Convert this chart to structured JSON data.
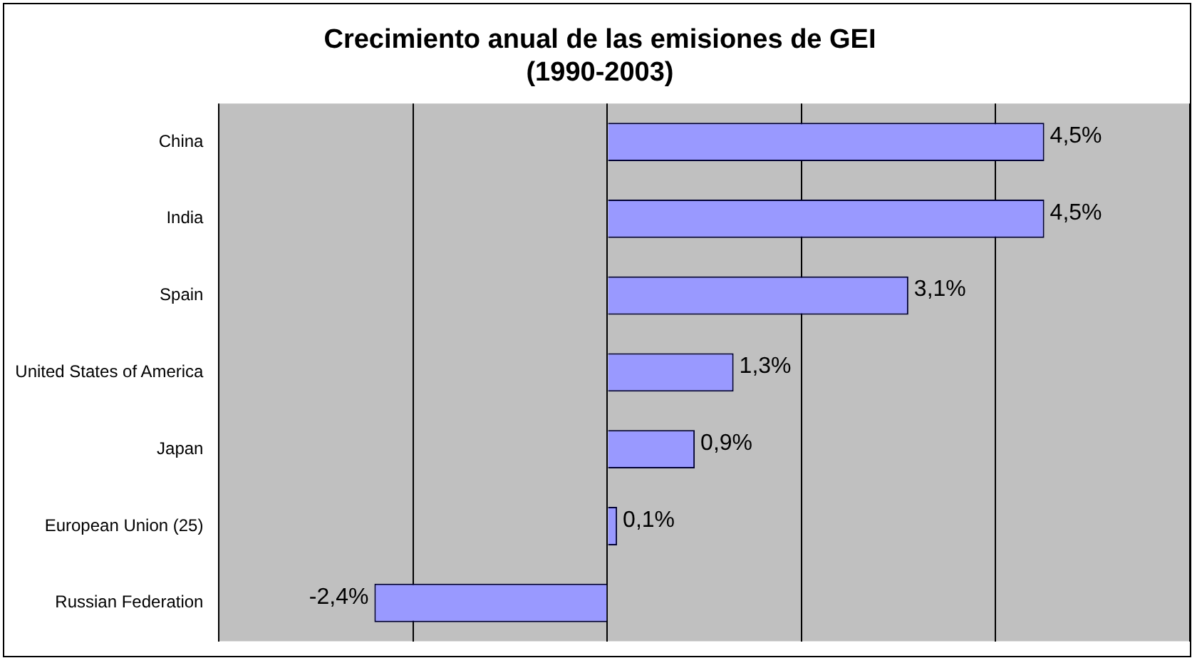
{
  "chart_data": {
    "type": "bar",
    "orientation": "horizontal",
    "title": "Crecimiento anual de las emisiones de GEI\n(1990-2003)",
    "categories": [
      "China",
      "India",
      "Spain",
      "United States of America",
      "Japan",
      "European Union (25)",
      "Russian Federation"
    ],
    "values": [
      4.5,
      4.5,
      3.1,
      1.3,
      0.9,
      0.1,
      -2.4
    ],
    "value_labels": [
      "4,5%",
      "4,5%",
      "3,1%",
      "1,3%",
      "0,9%",
      "0,1%",
      "-2,4%"
    ],
    "color": "#9999ff",
    "xlim": [
      -4,
      6
    ],
    "xticks": [
      {
        "value": -4,
        "label": null
      },
      {
        "value": -2,
        "label": null
      },
      {
        "value": 0,
        "label": null
      },
      {
        "value": 2,
        "label": null
      },
      {
        "value": 4,
        "label": null
      },
      {
        "value": 6,
        "label": null
      }
    ],
    "tick_labels": "y",
    "grid": "x",
    "legend": false
  }
}
